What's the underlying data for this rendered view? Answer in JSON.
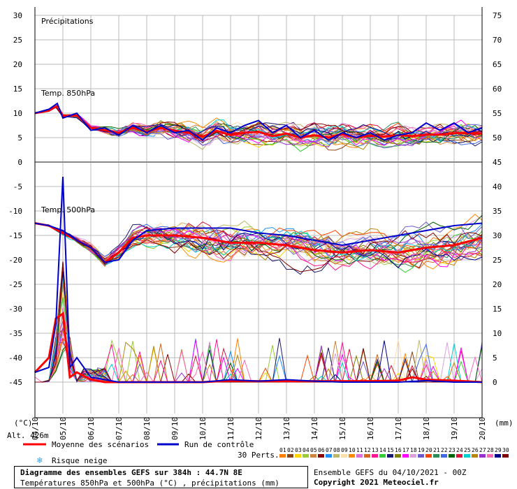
{
  "chart_data": {
    "type": "line",
    "title": "Diagramme des ensembles GEFS sur 384h : 44.7N 8E",
    "subtitle": "Températures 850hPa et 500hPa (°C) , précipitations (mm)",
    "left_axis_unit": "(°C)",
    "right_axis_unit": "(mm)",
    "left_ticks": [
      30,
      25,
      20,
      15,
      10,
      5,
      0,
      -5,
      -10,
      -15,
      -20,
      -25,
      -30,
      -35,
      -40,
      -45
    ],
    "right_ticks": [
      75,
      70,
      65,
      60,
      55,
      50,
      45,
      40,
      35,
      30,
      25,
      20,
      15,
      10,
      5,
      0
    ],
    "x_labels": [
      "04/10",
      "05/10",
      "06/10",
      "07/10",
      "08/10",
      "09/10",
      "10/10",
      "11/10",
      "12/10",
      "13/10",
      "14/10",
      "15/10",
      "16/10",
      "17/10",
      "18/10",
      "19/10",
      "20/10"
    ],
    "x_range": [
      0,
      16
    ],
    "ylim_left": [
      -45,
      30
    ],
    "ylim_right": [
      0,
      75
    ],
    "panel_labels": {
      "precip": "Précipitations",
      "t850": "Temp. 850hPa",
      "t500": "Temp. 500hPa"
    },
    "altitude": "Alt. 426m",
    "snow_label": "Risque neige",
    "legend": {
      "mean": "Moyenne des scénarios",
      "control": "Run de contrôle",
      "perts": "30 Perts."
    },
    "member_ids": [
      "01",
      "02",
      "03",
      "04",
      "05",
      "06",
      "07",
      "08",
      "09",
      "10",
      "11",
      "12",
      "13",
      "14",
      "15",
      "16",
      "17",
      "18",
      "19",
      "20",
      "21",
      "22",
      "23",
      "24",
      "25",
      "26",
      "27",
      "28",
      "29",
      "30"
    ],
    "member_colors": [
      "#ff7f00",
      "#8b4513",
      "#ffd700",
      "#9acd32",
      "#cd853f",
      "#8b0000",
      "#1e90ff",
      "#bdb76b",
      "#ffdead",
      "#ff8c00",
      "#da70d6",
      "#d2691e",
      "#ff1493",
      "#32cd32",
      "#191970",
      "#808000",
      "#ff00ff",
      "#dda0dd",
      "#6a5acd",
      "#ff4500",
      "#2e8b57",
      "#4169e1",
      "#006400",
      "#dc143c",
      "#00ced1",
      "#b8860b",
      "#9932cc",
      "#ff69b4",
      "#00008b",
      "#800000"
    ],
    "mean_color": "#ff0000",
    "control_color": "#0000cd",
    "series": [
      {
        "name": "Moyenne des scénarios",
        "panel": "t850",
        "x": [
          0,
          0.5,
          0.8,
          1,
          1.5,
          2,
          2.5,
          3,
          3.5,
          4,
          4.5,
          5,
          5.5,
          6,
          6.5,
          7,
          7.5,
          8,
          8.5,
          9,
          9.5,
          10,
          10.5,
          11,
          11.5,
          12,
          12.5,
          13,
          13.5,
          14,
          14.5,
          15,
          15.5,
          16
        ],
        "values": [
          10,
          10.5,
          11.5,
          9.5,
          9.5,
          7,
          6.5,
          6,
          7,
          6.2,
          7,
          6.4,
          6,
          5.2,
          6.4,
          5.5,
          6,
          6.2,
          5.3,
          5.8,
          5,
          5.5,
          5,
          5.7,
          5,
          5.4,
          5.2,
          5.5,
          5.3,
          5.6,
          5.6,
          5.9,
          6,
          5.8
        ]
      },
      {
        "name": "Run de contrôle",
        "panel": "t850",
        "x": [
          0,
          0.5,
          0.8,
          1,
          1.5,
          2,
          2.5,
          3,
          3.5,
          4,
          4.5,
          5,
          5.5,
          6,
          6.5,
          7,
          7.5,
          8,
          8.5,
          9,
          9.5,
          10,
          10.5,
          11,
          11.5,
          12,
          12.5,
          13,
          13.5,
          14,
          14.5,
          15,
          15.5,
          16
        ],
        "values": [
          10,
          10.8,
          12,
          9,
          10,
          6.5,
          7,
          5.5,
          7.5,
          6,
          7.5,
          6,
          6.5,
          4.5,
          7,
          6,
          7.5,
          8.5,
          6,
          7.5,
          5,
          6.5,
          4.5,
          6,
          5,
          6,
          4.5,
          5.5,
          6,
          8,
          6.5,
          8,
          6,
          7
        ]
      },
      {
        "name": "Moyenne des scénarios",
        "panel": "t500",
        "x": [
          0,
          0.5,
          1,
          1.5,
          2,
          2.5,
          3,
          3.5,
          4,
          5,
          6,
          7,
          8,
          9,
          10,
          11,
          12,
          13,
          14,
          15,
          16
        ],
        "values": [
          -12.5,
          -13,
          -14.5,
          -16,
          -17.5,
          -20.5,
          -18.5,
          -15.5,
          -15,
          -15,
          -15.5,
          -16.5,
          -16.5,
          -17,
          -18,
          -18.5,
          -18,
          -18.5,
          -17.5,
          -17,
          -15.5
        ]
      },
      {
        "name": "Run de contrôle",
        "panel": "t500",
        "x": [
          0,
          0.5,
          1,
          1.5,
          2,
          2.5,
          3,
          3.5,
          4,
          5,
          6,
          7,
          8,
          9,
          10,
          11,
          12,
          13,
          14,
          15,
          16
        ],
        "values": [
          -12.5,
          -13,
          -14,
          -16,
          -17.5,
          -20.5,
          -20,
          -16,
          -14,
          -13.5,
          -13.5,
          -13.5,
          -14.5,
          -15,
          -16,
          -17,
          -16,
          -15,
          -14,
          -13,
          -12.5
        ]
      },
      {
        "name": "Moyenne des scénarios",
        "panel": "precip",
        "unit": "mm",
        "x": [
          0,
          0.5,
          0.75,
          1,
          1.25,
          1.5,
          2,
          2.5,
          3,
          4,
          5,
          6,
          7,
          8,
          9,
          10,
          11,
          12,
          13,
          13.5,
          14,
          15,
          16
        ],
        "values": [
          2,
          5,
          13,
          14,
          1,
          2,
          0.5,
          0,
          0,
          0,
          0,
          0,
          0.3,
          0.2,
          0.2,
          0.2,
          0.2,
          0.2,
          0.3,
          1,
          0.5,
          0.3,
          0
        ]
      },
      {
        "name": "Run de contrôle",
        "panel": "precip",
        "unit": "mm",
        "x": [
          0,
          0.5,
          0.75,
          1,
          1.25,
          1.5,
          2,
          2.5,
          3,
          4,
          5,
          6,
          7,
          8,
          9,
          10,
          11,
          12,
          13,
          14,
          15,
          16
        ],
        "values": [
          2,
          3,
          12,
          42,
          3,
          5,
          1,
          0.5,
          0,
          0,
          0,
          0,
          0.5,
          0.2,
          0.5,
          0.2,
          0,
          0,
          0,
          0.3,
          0,
          0
        ]
      }
    ]
  },
  "footer": {
    "ensemble": "Ensemble GEFS du 04/10/2021 - 00Z",
    "copyright": "Copyright 2021 Meteociel.fr"
  }
}
